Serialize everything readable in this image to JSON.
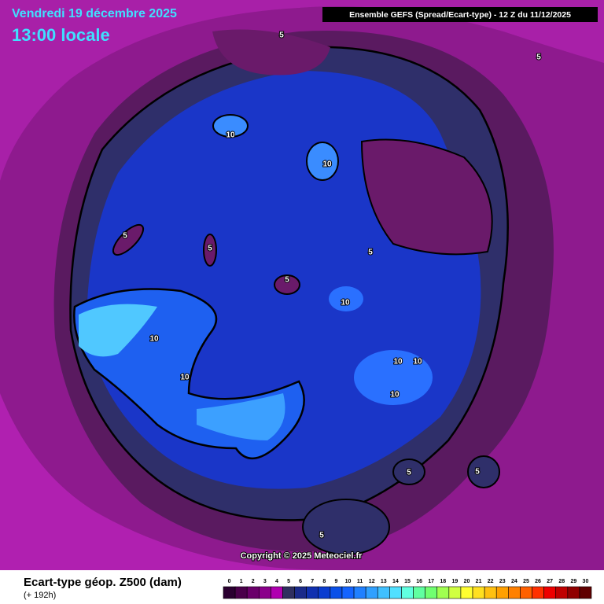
{
  "header": {
    "date": "Vendredi 19 décembre 2025",
    "time": "13:00 locale",
    "run": "Ensemble GEFS  (Spread/Ecart-type) - 12 Z du 11/12/2025"
  },
  "contour_labels": [
    "5",
    "5",
    "10",
    "10",
    "5",
    "5",
    "5",
    "5",
    "10",
    "10",
    "10",
    "10",
    "10",
    "10",
    "5",
    "5",
    "5"
  ],
  "copyright": "Copyright © 2025 Meteociel.fr",
  "footer": {
    "title": "Ecart-type géop. Z500 (dam)",
    "lead": "(+ 192h)"
  },
  "scale": {
    "labels": [
      0,
      1,
      2,
      3,
      4,
      5,
      6,
      7,
      8,
      9,
      10,
      11,
      12,
      13,
      14,
      15,
      16,
      17,
      18,
      19,
      20,
      21,
      22,
      23,
      24,
      25,
      26,
      27,
      28,
      29,
      30
    ],
    "colors": [
      "#2b0030",
      "#4a004a",
      "#6a006a",
      "#8a008a",
      "#b000b0",
      "#2f2f5f",
      "#1a2a8a",
      "#1030b0",
      "#0a3cd0",
      "#0a50e8",
      "#1464ff",
      "#2080ff",
      "#30a0ff",
      "#40c0ff",
      "#50e0ff",
      "#60ffe0",
      "#60ffa0",
      "#70ff70",
      "#a0ff50",
      "#d0ff40",
      "#ffff30",
      "#ffe020",
      "#ffc010",
      "#ffa000",
      "#ff8000",
      "#ff6000",
      "#ff3000",
      "#ee0000",
      "#c00000",
      "#900000",
      "#600000"
    ]
  }
}
